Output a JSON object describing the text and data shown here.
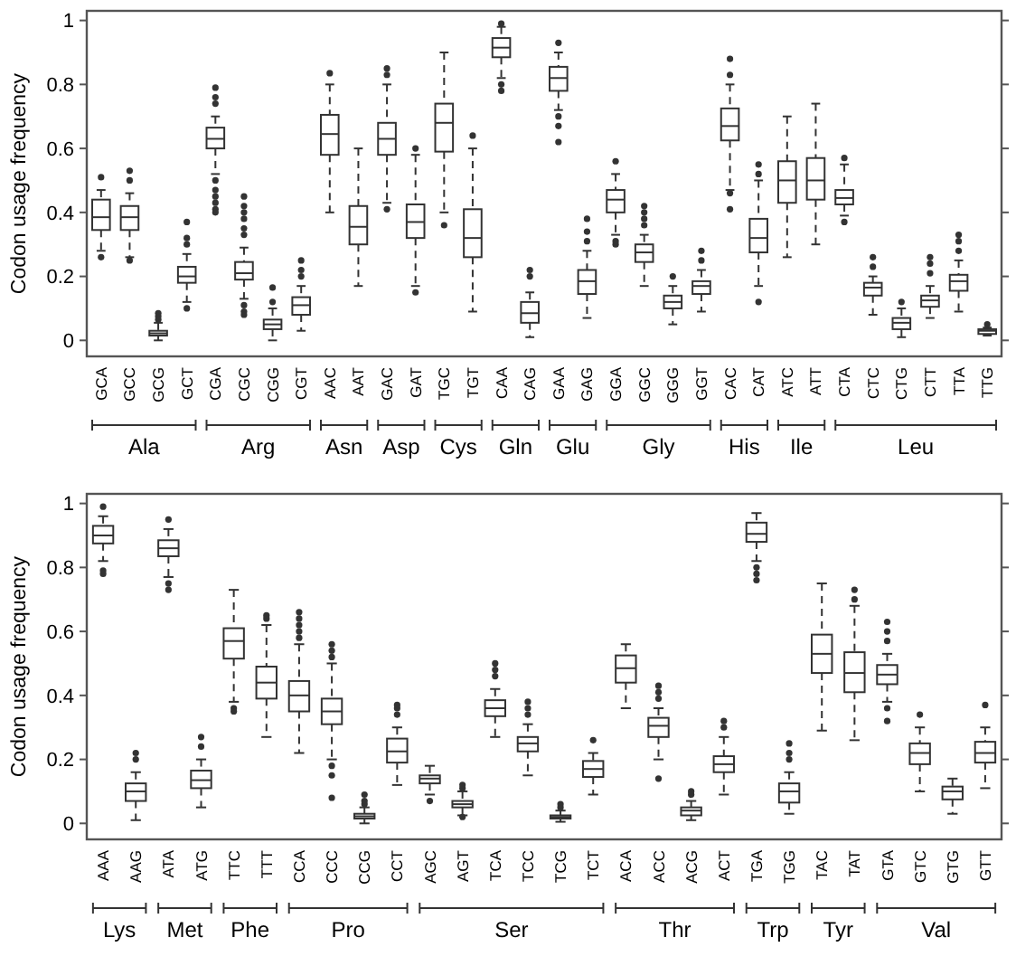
{
  "chart_data": [
    {
      "type": "box",
      "ylabel": "Codon usage frequency",
      "ylim": [
        -0.05,
        1.03
      ],
      "yticks": [
        0,
        0.2,
        0.4,
        0.6,
        0.8,
        1
      ],
      "grid": false,
      "categories": [
        "GCA",
        "GCC",
        "GCG",
        "GCT",
        "CGA",
        "CGC",
        "CGG",
        "CGT",
        "AAC",
        "AAT",
        "GAC",
        "GAT",
        "TGC",
        "TGT",
        "CAA",
        "CAG",
        "GAA",
        "GAG",
        "GGA",
        "GGC",
        "GGG",
        "GGT",
        "CAC",
        "CAT",
        "ATC",
        "ATT",
        "CTA",
        "CTC",
        "CTG",
        "CTT",
        "TTA",
        "TTG"
      ],
      "annotations": [
        "Ala",
        "Arg",
        "Asn",
        "Asp",
        "Cys",
        "Gln",
        "Glu",
        "Gly",
        "His",
        "Ile",
        "Leu"
      ],
      "boxes": [
        {
          "low": 0.28,
          "q1": 0.345,
          "median": 0.385,
          "q3": 0.44,
          "high": 0.47,
          "outliers": [
            0.51,
            0.26
          ]
        },
        {
          "low": 0.26,
          "q1": 0.345,
          "median": 0.385,
          "q3": 0.42,
          "high": 0.46,
          "outliers": [
            0.5,
            0.53,
            0.25
          ]
        },
        {
          "low": 0,
          "q1": 0.015,
          "median": 0.022,
          "q3": 0.03,
          "high": 0.055,
          "outliers": [
            0.065,
            0.075,
            0.085
          ]
        },
        {
          "low": 0.12,
          "q1": 0.18,
          "median": 0.2,
          "q3": 0.23,
          "high": 0.27,
          "outliers": [
            0.3,
            0.32,
            0.37,
            0.1
          ]
        },
        {
          "low": 0.52,
          "q1": 0.6,
          "median": 0.63,
          "q3": 0.665,
          "high": 0.7,
          "outliers": [
            0.74,
            0.76,
            0.79,
            0.5,
            0.47,
            0.45,
            0.43,
            0.41,
            0.4
          ]
        },
        {
          "low": 0.13,
          "q1": 0.19,
          "median": 0.21,
          "q3": 0.245,
          "high": 0.29,
          "outliers": [
            0.33,
            0.35,
            0.38,
            0.4,
            0.42,
            0.45,
            0.11,
            0.09,
            0.08
          ]
        },
        {
          "low": 0,
          "q1": 0.035,
          "median": 0.05,
          "q3": 0.065,
          "high": 0.1,
          "outliers": [
            0.12,
            0.165
          ]
        },
        {
          "low": 0.03,
          "q1": 0.08,
          "median": 0.11,
          "q3": 0.135,
          "high": 0.17,
          "outliers": [
            0.2,
            0.22,
            0.25
          ]
        },
        {
          "low": 0.4,
          "q1": 0.58,
          "median": 0.645,
          "q3": 0.705,
          "high": 0.8,
          "outliers": [
            0.835
          ]
        },
        {
          "low": 0.17,
          "q1": 0.3,
          "median": 0.355,
          "q3": 0.42,
          "high": 0.6
        },
        {
          "low": 0.43,
          "q1": 0.58,
          "median": 0.63,
          "q3": 0.68,
          "high": 0.8,
          "outliers": [
            0.83,
            0.85,
            0.41
          ]
        },
        {
          "low": 0.17,
          "q1": 0.32,
          "median": 0.37,
          "q3": 0.425,
          "high": 0.58,
          "outliers": [
            0.6,
            0.15
          ]
        },
        {
          "low": 0.4,
          "q1": 0.59,
          "median": 0.68,
          "q3": 0.74,
          "high": 0.9,
          "outliers": [
            0.36
          ]
        },
        {
          "low": 0.09,
          "q1": 0.26,
          "median": 0.32,
          "q3": 0.41,
          "high": 0.6,
          "outliers": [
            0.64
          ]
        },
        {
          "low": 0.82,
          "q1": 0.885,
          "median": 0.915,
          "q3": 0.945,
          "high": 0.98,
          "outliers": [
            0.99,
            0.8,
            0.78
          ]
        },
        {
          "low": 0.01,
          "q1": 0.055,
          "median": 0.085,
          "q3": 0.12,
          "high": 0.15,
          "outliers": [
            0.2,
            0.22
          ]
        },
        {
          "low": 0.72,
          "q1": 0.78,
          "median": 0.82,
          "q3": 0.855,
          "high": 0.9,
          "outliers": [
            0.93,
            0.7,
            0.67,
            0.62
          ]
        },
        {
          "low": 0.07,
          "q1": 0.145,
          "median": 0.185,
          "q3": 0.22,
          "high": 0.28,
          "outliers": [
            0.31,
            0.34,
            0.38
          ]
        },
        {
          "low": 0.33,
          "q1": 0.4,
          "median": 0.44,
          "q3": 0.47,
          "high": 0.52,
          "outliers": [
            0.56,
            0.3,
            0.31
          ]
        },
        {
          "low": 0.17,
          "q1": 0.245,
          "median": 0.275,
          "q3": 0.3,
          "high": 0.33,
          "outliers": [
            0.36,
            0.38,
            0.4,
            0.42
          ]
        },
        {
          "low": 0.05,
          "q1": 0.1,
          "median": 0.12,
          "q3": 0.14,
          "high": 0.17,
          "outliers": [
            0.2
          ]
        },
        {
          "low": 0.09,
          "q1": 0.145,
          "median": 0.17,
          "q3": 0.185,
          "high": 0.22,
          "outliers": [
            0.25,
            0.28
          ]
        },
        {
          "low": 0.47,
          "q1": 0.625,
          "median": 0.67,
          "q3": 0.725,
          "high": 0.8,
          "outliers": [
            0.83,
            0.88,
            0.46,
            0.41
          ]
        },
        {
          "low": 0.17,
          "q1": 0.275,
          "median": 0.32,
          "q3": 0.38,
          "high": 0.5,
          "outliers": [
            0.55,
            0.52,
            0.12
          ]
        },
        {
          "low": 0.26,
          "q1": 0.43,
          "median": 0.5,
          "q3": 0.56,
          "high": 0.7
        },
        {
          "low": 0.3,
          "q1": 0.44,
          "median": 0.5,
          "q3": 0.57,
          "high": 0.74
        },
        {
          "low": 0.39,
          "q1": 0.425,
          "median": 0.445,
          "q3": 0.47,
          "high": 0.55,
          "outliers": [
            0.57,
            0.37
          ]
        },
        {
          "low": 0.08,
          "q1": 0.14,
          "median": 0.165,
          "q3": 0.18,
          "high": 0.2,
          "outliers": [
            0.23,
            0.26
          ]
        },
        {
          "low": 0.01,
          "q1": 0.035,
          "median": 0.055,
          "q3": 0.07,
          "high": 0.1,
          "outliers": [
            0.12
          ]
        },
        {
          "low": 0.07,
          "q1": 0.105,
          "median": 0.125,
          "q3": 0.14,
          "high": 0.17,
          "outliers": [
            0.21,
            0.24,
            0.26
          ]
        },
        {
          "low": 0.09,
          "q1": 0.155,
          "median": 0.185,
          "q3": 0.205,
          "high": 0.25,
          "outliers": [
            0.28,
            0.31,
            0.33
          ]
        },
        {
          "low": 0.015,
          "q1": 0.02,
          "median": 0.03,
          "q3": 0.035,
          "high": 0.04,
          "outliers": [
            0.05
          ]
        }
      ]
    },
    {
      "type": "box",
      "ylabel": "Codon usage frequency",
      "ylim": [
        -0.05,
        1.03
      ],
      "yticks": [
        0,
        0.2,
        0.4,
        0.6,
        0.8,
        1
      ],
      "grid": false,
      "categories": [
        "AAA",
        "AAG",
        "ATA",
        "ATG",
        "TTC",
        "TTT",
        "CCA",
        "CCC",
        "CCG",
        "CCT",
        "AGC",
        "AGT",
        "TCA",
        "TCC",
        "TCG",
        "TCT",
        "ACA",
        "ACC",
        "ACG",
        "ACT",
        "TGA",
        "TGG",
        "TAC",
        "TAT",
        "GTA",
        "GTC",
        "GTG",
        "GTT"
      ],
      "annotations": [
        "Lys",
        "Met",
        "Phe",
        "Pro",
        "Ser",
        "Thr",
        "Trp",
        "Tyr",
        "Val"
      ],
      "boxes": [
        {
          "low": 0.82,
          "q1": 0.875,
          "median": 0.9,
          "q3": 0.93,
          "high": 0.96,
          "outliers": [
            0.99,
            0.79,
            0.78
          ]
        },
        {
          "low": 0.01,
          "q1": 0.07,
          "median": 0.1,
          "q3": 0.125,
          "high": 0.16,
          "outliers": [
            0.2,
            0.22
          ]
        },
        {
          "low": 0.77,
          "q1": 0.835,
          "median": 0.86,
          "q3": 0.885,
          "high": 0.92,
          "outliers": [
            0.95,
            0.75,
            0.73
          ]
        },
        {
          "low": 0.05,
          "q1": 0.11,
          "median": 0.135,
          "q3": 0.165,
          "high": 0.2,
          "outliers": [
            0.24,
            0.27
          ]
        },
        {
          "low": 0.38,
          "q1": 0.515,
          "median": 0.57,
          "q3": 0.61,
          "high": 0.73,
          "outliers": [
            0.36,
            0.35
          ]
        },
        {
          "low": 0.27,
          "q1": 0.39,
          "median": 0.44,
          "q3": 0.49,
          "high": 0.62,
          "outliers": [
            0.64,
            0.65
          ]
        },
        {
          "low": 0.22,
          "q1": 0.35,
          "median": 0.4,
          "q3": 0.445,
          "high": 0.56,
          "outliers": [
            0.58,
            0.6,
            0.62,
            0.64,
            0.66
          ]
        },
        {
          "low": 0.2,
          "q1": 0.31,
          "median": 0.35,
          "q3": 0.39,
          "high": 0.5,
          "outliers": [
            0.52,
            0.54,
            0.56,
            0.18,
            0.15,
            0.08
          ]
        },
        {
          "low": 0,
          "q1": 0.015,
          "median": 0.022,
          "q3": 0.03,
          "high": 0.05,
          "outliers": [
            0.06,
            0.07,
            0.09
          ]
        },
        {
          "low": 0.12,
          "q1": 0.19,
          "median": 0.225,
          "q3": 0.265,
          "high": 0.3,
          "outliers": [
            0.34,
            0.36,
            0.37
          ]
        },
        {
          "low": 0.09,
          "q1": 0.125,
          "median": 0.14,
          "q3": 0.15,
          "high": 0.18,
          "outliers": [
            0.07
          ]
        },
        {
          "low": 0.025,
          "q1": 0.05,
          "median": 0.06,
          "q3": 0.07,
          "high": 0.1,
          "outliers": [
            0.11,
            0.12,
            0.02
          ]
        },
        {
          "low": 0.27,
          "q1": 0.335,
          "median": 0.36,
          "q3": 0.385,
          "high": 0.42,
          "outliers": [
            0.46,
            0.48,
            0.5
          ]
        },
        {
          "low": 0.15,
          "q1": 0.225,
          "median": 0.25,
          "q3": 0.27,
          "high": 0.31,
          "outliers": [
            0.34,
            0.36,
            0.38
          ]
        },
        {
          "low": 0.005,
          "q1": 0.015,
          "median": 0.02,
          "q3": 0.025,
          "high": 0.04,
          "outliers": [
            0.05,
            0.06
          ]
        },
        {
          "low": 0.09,
          "q1": 0.145,
          "median": 0.17,
          "q3": 0.195,
          "high": 0.22,
          "outliers": [
            0.26
          ]
        },
        {
          "low": 0.36,
          "q1": 0.44,
          "median": 0.485,
          "q3": 0.525,
          "high": 0.56
        },
        {
          "low": 0.2,
          "q1": 0.27,
          "median": 0.305,
          "q3": 0.33,
          "high": 0.36,
          "outliers": [
            0.39,
            0.41,
            0.43,
            0.14
          ]
        },
        {
          "low": 0.01,
          "q1": 0.025,
          "median": 0.04,
          "q3": 0.05,
          "high": 0.07,
          "outliers": [
            0.09,
            0.1
          ]
        },
        {
          "low": 0.09,
          "q1": 0.16,
          "median": 0.185,
          "q3": 0.21,
          "high": 0.27,
          "outliers": [
            0.3,
            0.32
          ]
        },
        {
          "low": 0.82,
          "q1": 0.88,
          "median": 0.905,
          "q3": 0.94,
          "high": 0.97,
          "outliers": [
            0.8,
            0.78,
            0.76
          ]
        },
        {
          "low": 0.03,
          "q1": 0.065,
          "median": 0.1,
          "q3": 0.125,
          "high": 0.16,
          "outliers": [
            0.2,
            0.22,
            0.25
          ]
        },
        {
          "low": 0.29,
          "q1": 0.47,
          "median": 0.53,
          "q3": 0.59,
          "high": 0.75
        },
        {
          "low": 0.26,
          "q1": 0.41,
          "median": 0.47,
          "q3": 0.535,
          "high": 0.68,
          "outliers": [
            0.7,
            0.73
          ]
        },
        {
          "low": 0.38,
          "q1": 0.435,
          "median": 0.465,
          "q3": 0.495,
          "high": 0.53,
          "outliers": [
            0.57,
            0.6,
            0.63,
            0.36,
            0.32
          ]
        },
        {
          "low": 0.1,
          "q1": 0.185,
          "median": 0.22,
          "q3": 0.25,
          "high": 0.3,
          "outliers": [
            0.34
          ]
        },
        {
          "low": 0.03,
          "q1": 0.075,
          "median": 0.1,
          "q3": 0.115,
          "high": 0.14
        },
        {
          "low": 0.11,
          "q1": 0.19,
          "median": 0.22,
          "q3": 0.255,
          "high": 0.3,
          "outliers": [
            0.37
          ]
        }
      ]
    }
  ]
}
